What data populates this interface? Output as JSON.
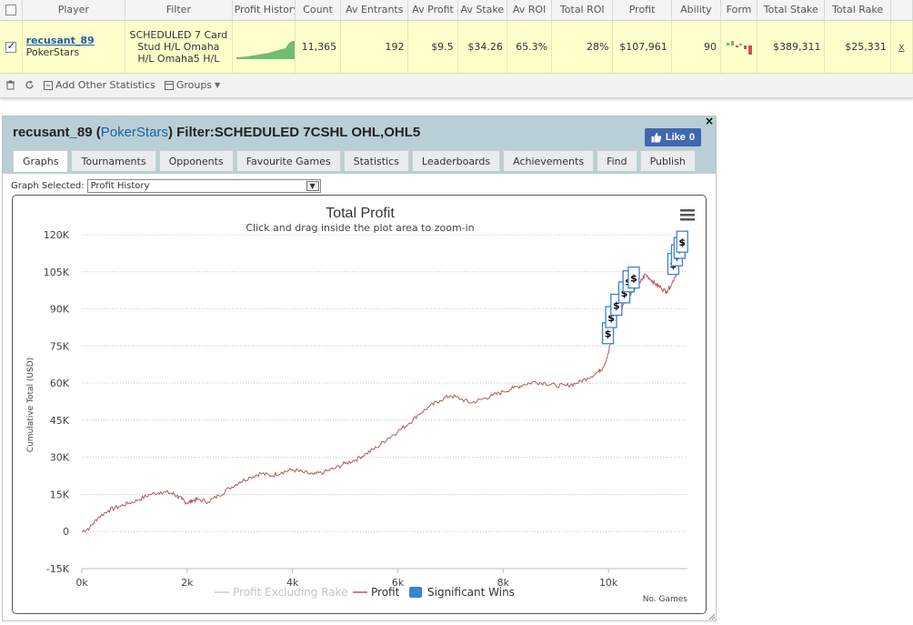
{
  "stats_table": {
    "headers": [
      "Player",
      "Filter",
      "Profit History",
      "Count",
      "Av Entrants",
      "Av Profit",
      "Av Stake",
      "Av ROI",
      "Total ROI",
      "Profit",
      "Ability",
      "Form",
      "Total Stake",
      "Total Rake"
    ],
    "row": {
      "player_name": "recusant_89",
      "site": "PokerStars",
      "filter": "SCHEDULED 7 Card Stud H/L Omaha H/L Omaha5 H/L",
      "count": "11,365",
      "av_entrants": "192",
      "av_profit": "$9.5",
      "av_stake": "$34.26",
      "av_roi": "65.3%",
      "total_roi": "28%",
      "profit": "$107,961",
      "ability": "90",
      "total_stake": "$389,311",
      "total_rake": "$25,331",
      "remove": "x"
    }
  },
  "toolbar": {
    "add_stats": "Add Other Statistics",
    "groups": "Groups"
  },
  "panel": {
    "player": "recusant_89",
    "site": "PokerStars",
    "filter_label": "Filter:",
    "filter_value": "SCHEDULED 7CSHL OHL,OHL5",
    "like_label": "Like",
    "like_count": "0",
    "close": "×",
    "tabs": [
      "Graphs",
      "Tournaments",
      "Opponents",
      "Favourite Games",
      "Statistics",
      "Leaderboards",
      "Achievements",
      "Find",
      "Publish"
    ],
    "graph_selected_label": "Graph Selected:",
    "graph_selected_value": "Profit History"
  },
  "chart_data": {
    "type": "line",
    "title": "Total Profit",
    "subtitle": "Click and drag inside the plot area to zoom-in",
    "xlabel": "No. Games",
    "ylabel": "Cumulative Total (USD)",
    "xlim": [
      0,
      11500
    ],
    "ylim": [
      -15000,
      120000
    ],
    "x_ticks": [
      0,
      2000,
      4000,
      6000,
      8000,
      10000
    ],
    "x_tick_labels": [
      "0k",
      "2k",
      "4k",
      "6k",
      "8k",
      "10k"
    ],
    "y_ticks": [
      -15000,
      0,
      15000,
      30000,
      45000,
      60000,
      75000,
      90000,
      105000,
      120000
    ],
    "y_tick_labels": [
      "-15K",
      "0",
      "15K",
      "30K",
      "45K",
      "60K",
      "75K",
      "90K",
      "105K",
      "120K"
    ],
    "grid": true,
    "legend_position": "bottom",
    "legend": [
      "Profit Excluding Rake",
      "Profit",
      "Significant Wins"
    ],
    "series": [
      {
        "name": "Profit",
        "color": "#b55a5a",
        "x": [
          0,
          150,
          300,
          500,
          700,
          900,
          1100,
          1300,
          1500,
          1700,
          1800,
          1900,
          2000,
          2100,
          2200,
          2400,
          2600,
          2800,
          3000,
          3200,
          3400,
          3600,
          3800,
          4000,
          4200,
          4400,
          4600,
          4800,
          5000,
          5200,
          5400,
          5600,
          5800,
          6000,
          6200,
          6400,
          6600,
          6800,
          7000,
          7200,
          7400,
          7600,
          7800,
          8000,
          8200,
          8400,
          8600,
          8800,
          9000,
          9200,
          9400,
          9600,
          9800,
          9900,
          10000,
          10050,
          10100,
          10200,
          10300,
          10400,
          10500,
          10600,
          10700,
          10800,
          10900,
          11000,
          11100,
          11200,
          11300,
          11400
        ],
        "values": [
          0,
          1500,
          5500,
          8500,
          10000,
          11500,
          13000,
          15000,
          16000,
          15500,
          14500,
          13000,
          11500,
          12500,
          13000,
          12000,
          14500,
          17500,
          20000,
          22000,
          23500,
          22500,
          24000,
          25000,
          24000,
          23000,
          24000,
          25500,
          27500,
          29000,
          31500,
          34000,
          37500,
          40500,
          43500,
          47500,
          50500,
          53000,
          55000,
          53500,
          52000,
          53500,
          55000,
          56500,
          58000,
          59500,
          60500,
          60000,
          59000,
          59000,
          60000,
          62000,
          64500,
          66500,
          72000,
          78000,
          84000,
          88500,
          93000,
          96000,
          98000,
          100500,
          104000,
          102000,
          100000,
          98500,
          97000,
          100000,
          105000,
          111000
        ]
      }
    ],
    "significant_wins": [
      {
        "x": 9990,
        "y": 80000
      },
      {
        "x": 10050,
        "y": 86500
      },
      {
        "x": 10150,
        "y": 91500
      },
      {
        "x": 10300,
        "y": 96500
      },
      {
        "x": 10380,
        "y": 101000
      },
      {
        "x": 10480,
        "y": 102500
      },
      {
        "x": 11230,
        "y": 108000
      },
      {
        "x": 11300,
        "y": 111500
      },
      {
        "x": 11350,
        "y": 114500
      },
      {
        "x": 11400,
        "y": 117000
      }
    ],
    "significant_win_label": "$"
  },
  "colors": {
    "row_highlight": "#ffffcc",
    "link": "#1d5fa8",
    "panel_header": "#b9cfd6",
    "profit_line": "#b55a5a",
    "significant_wins": "#3b82d6",
    "profit_excl_rake": "#cccccc",
    "form_up": "#6dbf6d",
    "form_down": "#d05050"
  },
  "icons": {
    "delete": "trash-icon",
    "refresh": "refresh-icon",
    "add_stats": "add-stats-icon",
    "groups": "groups-icon",
    "menu": "hamburger-menu-icon",
    "like": "thumbs-up-icon"
  }
}
